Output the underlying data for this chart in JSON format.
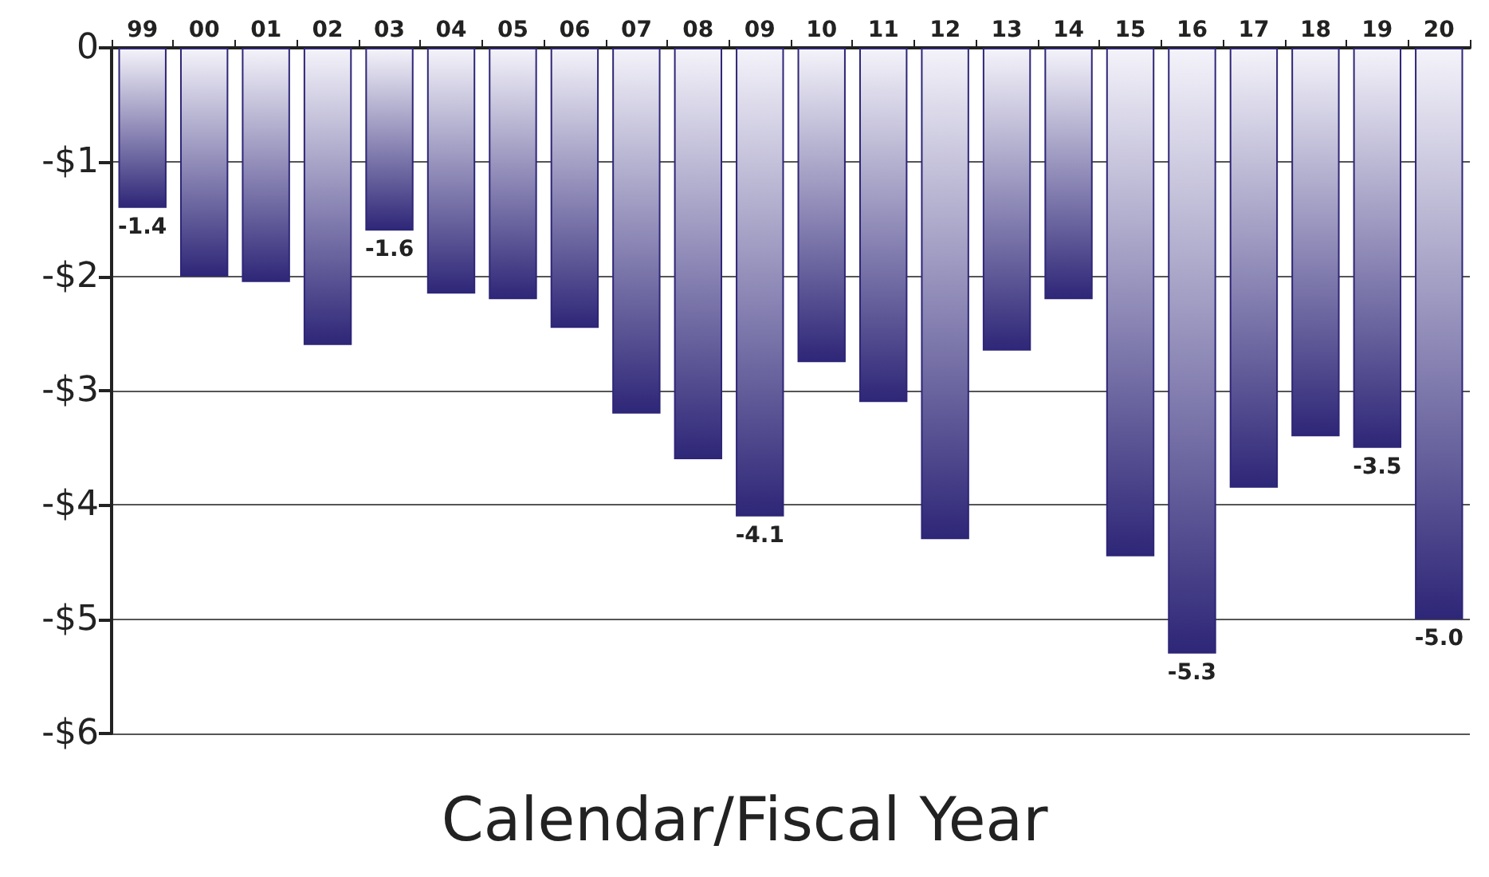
{
  "chart_data": {
    "type": "bar",
    "xlabel": "Calendar/Fiscal Year",
    "categories": [
      "99",
      "00",
      "01",
      "02",
      "03",
      "04",
      "05",
      "06",
      "07",
      "08",
      "09",
      "10",
      "11",
      "12",
      "13",
      "14",
      "15",
      "16",
      "17",
      "18",
      "19",
      "20"
    ],
    "values": [
      -1.4,
      -2.0,
      -2.05,
      -2.6,
      -1.6,
      -2.15,
      -2.2,
      -2.45,
      -3.2,
      -3.6,
      -4.1,
      -2.75,
      -3.1,
      -4.3,
      -2.65,
      -2.2,
      -4.45,
      -5.3,
      -3.85,
      -3.4,
      -3.5,
      -5.0
    ],
    "value_labels": [
      "-1.4",
      null,
      null,
      null,
      "-1.6",
      null,
      null,
      null,
      null,
      null,
      "-4.1",
      null,
      null,
      null,
      null,
      null,
      null,
      "-5.3",
      null,
      null,
      "-3.5",
      "-5.0"
    ],
    "color": "#2e2677",
    "ylim": [
      -6,
      0
    ],
    "yticks": [
      {
        "value": -6,
        "label": "-$6"
      },
      {
        "value": -5,
        "label": "-$5"
      },
      {
        "value": -4,
        "label": "-$4"
      },
      {
        "value": -3,
        "label": "-$3"
      },
      {
        "value": -2,
        "label": "-$2"
      },
      {
        "value": -1,
        "label": "-$1"
      },
      0
    ],
    "grid": "y"
  }
}
